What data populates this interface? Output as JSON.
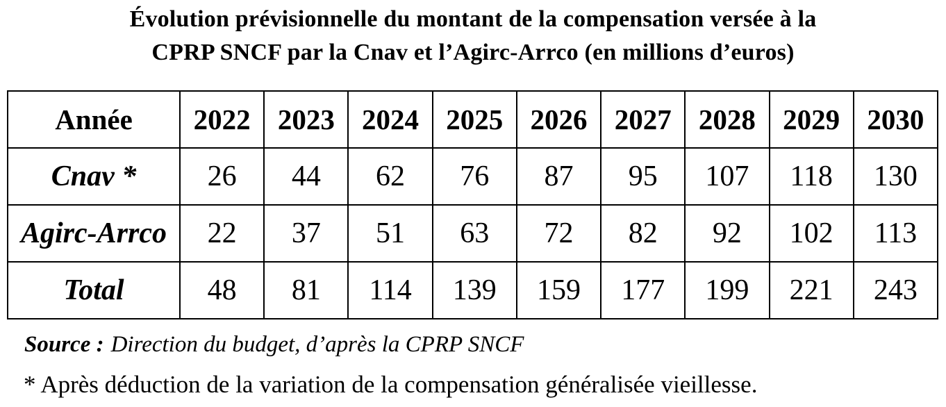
{
  "title": {
    "line1": "Évolution prévisionnelle du montant de la compensation versée à la",
    "line2": "CPRP SNCF par la Cnav et l’Agirc-Arrco (en millions d’euros)"
  },
  "colors": {
    "text": "#000000",
    "background": "#ffffff",
    "table_border": "#000000"
  },
  "table": {
    "header": [
      "Année",
      "2022",
      "2023",
      "2024",
      "2025",
      "2026",
      "2027",
      "2028",
      "2029",
      "2030"
    ],
    "rows": [
      {
        "label": "Cnav *",
        "values": [
          26,
          44,
          62,
          76,
          87,
          95,
          107,
          118,
          130
        ]
      },
      {
        "label": "Agirc-Arrco",
        "values": [
          22,
          37,
          51,
          63,
          72,
          82,
          92,
          102,
          113
        ]
      },
      {
        "label": "Total",
        "values": [
          48,
          81,
          114,
          139,
          159,
          177,
          199,
          221,
          243
        ]
      }
    ]
  },
  "source": {
    "label": "Source :",
    "text": "Direction du budget, d’après la CPRP SNCF"
  },
  "footnote": "* Après déduction de la variation de la compensation généralisée vieillesse."
}
